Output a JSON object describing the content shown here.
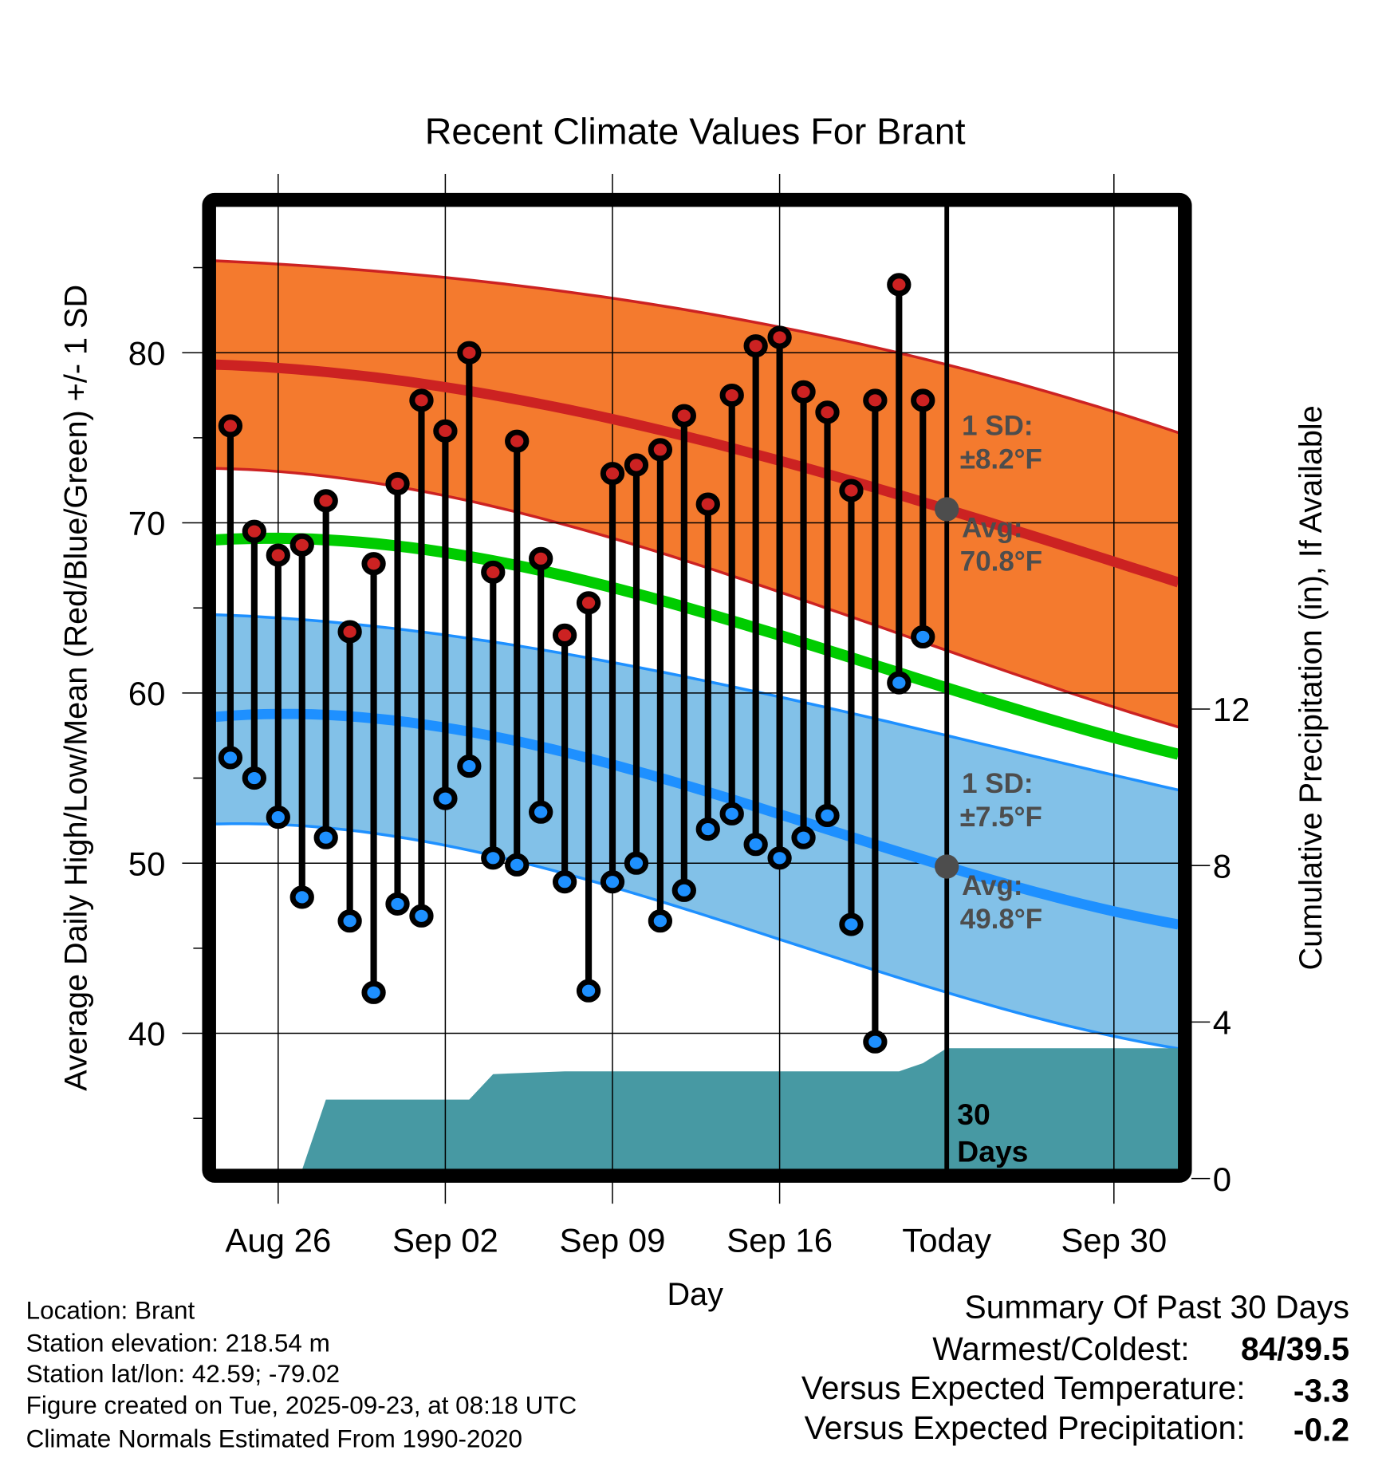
{
  "chart_data": {
    "type": "line",
    "title": "Recent Climate Values For Brant",
    "xlabel": "Day",
    "ylabel": "Average Daily High/Low/Mean (Red/Blue/Green) +/- 1 SD",
    "y2label": "Cumulative Precipitation (in), If Available",
    "ylim": [
      31.9,
      88.6
    ],
    "y2lim": [
      0,
      20
    ],
    "y_ticks": [
      "40",
      "50",
      "60",
      "70",
      "80"
    ],
    "y2_ticks": [
      "0",
      "4",
      "8",
      "12"
    ],
    "x_ticks": [
      {
        "label": "Aug 26",
        "day": 2
      },
      {
        "label": "Sep 02",
        "day": 9
      },
      {
        "label": "Sep 09",
        "day": 16
      },
      {
        "label": "Sep 16",
        "day": 23
      },
      {
        "label": "Today",
        "day": 30
      },
      {
        "label": "Sep 30",
        "day": 37
      }
    ],
    "x_unit": "days since Aug 24",
    "xlim": [
      -0.62,
      39.7
    ],
    "days": [
      "Aug 24",
      "Aug 25",
      "Aug 26",
      "Aug 27",
      "Aug 28",
      "Aug 29",
      "Aug 30",
      "Aug 31",
      "Sep 01",
      "Sep 02",
      "Sep 03",
      "Sep 04",
      "Sep 05",
      "Sep 06",
      "Sep 07",
      "Sep 08",
      "Sep 09",
      "Sep 10",
      "Sep 11",
      "Sep 12",
      "Sep 13",
      "Sep 14",
      "Sep 15",
      "Sep 16",
      "Sep 17",
      "Sep 18",
      "Sep 19",
      "Sep 20",
      "Sep 21",
      "Sep 22"
    ],
    "series": [
      {
        "name": "Daily High",
        "color": "#cc2222",
        "values": [
          75.7,
          69.5,
          68.1,
          68.7,
          71.3,
          63.6,
          67.6,
          72.3,
          77.2,
          75.4,
          80.0,
          67.1,
          74.8,
          67.9,
          63.4,
          65.3,
          72.9,
          73.4,
          74.3,
          76.3,
          71.1,
          77.5,
          80.4,
          80.9,
          77.7,
          76.5,
          71.9,
          77.2,
          84.0,
          77.2
        ]
      },
      {
        "name": "Daily Low",
        "color": "#1e90ff",
        "values": [
          56.2,
          55.0,
          52.7,
          48.0,
          51.5,
          46.6,
          42.4,
          47.6,
          46.9,
          53.8,
          55.7,
          50.3,
          49.9,
          53.0,
          48.9,
          42.5,
          48.9,
          50.0,
          46.6,
          48.4,
          52.0,
          52.9,
          51.1,
          50.3,
          51.5,
          52.8,
          46.4,
          39.5,
          60.6,
          63.3
        ]
      }
    ],
    "normals": {
      "days": [
        -0.62,
        16,
        30,
        39.7
      ],
      "high_upper": [
        85.4,
        83.2,
        79.3,
        75.3
      ],
      "high_avg": [
        79.3,
        76.1,
        70.8,
        66.5
      ],
      "high_lower": [
        73.2,
        69.1,
        62.5,
        58.0
      ],
      "mean": [
        69.0,
        66.2,
        60.3,
        56.4
      ],
      "low_upper": [
        64.6,
        61.8,
        57.5,
        54.3
      ],
      "low_avg": [
        58.6,
        55.8,
        49.8,
        46.4
      ],
      "low_lower": [
        52.3,
        48.6,
        42.4,
        39.1
      ]
    },
    "precipitation": {
      "days": [
        -0.62,
        3,
        4,
        10,
        11,
        14,
        28,
        29,
        30,
        39.7
      ],
      "values": [
        0.2,
        0.22,
        2.02,
        2.02,
        2.67,
        2.74,
        2.74,
        2.95,
        3.33,
        3.33
      ]
    },
    "annotations": {
      "high_sd_label": "1 SD:",
      "high_sd_value": "±8.2°F",
      "high_avg_label": "Avg:",
      "high_avg_value": "70.8°F",
      "low_sd_label": "1 SD:",
      "low_sd_value": "±7.5°F",
      "low_avg_label": "Avg:",
      "low_avg_value": "49.8°F",
      "window_num": "30",
      "window_unit": "Days"
    },
    "colors": {
      "high_band": "#f47a2e",
      "high_line": "#cc2222",
      "mean_line": "#00cc00",
      "low_band": "#82c1e8",
      "low_line": "#1e90ff",
      "precip": "#4799a3",
      "today_marker": "#4d4d4d"
    }
  },
  "info": {
    "location": "Location: Brant",
    "elevation": "Station elevation: 218.54 m",
    "latlon": "Station lat/lon: 42.59; -79.02",
    "created": "Figure created on Tue, 2025-09-23, at 08:18 UTC",
    "normals": "Climate Normals Estimated From 1990-2020"
  },
  "summary": {
    "title": "Summary Of Past 30 Days",
    "warm_cold_label": "Warmest/Coldest:",
    "warm_cold_value": "84/39.5",
    "temp_label": "Versus Expected Temperature:",
    "temp_value": "-3.3",
    "temp_color": "#1e90ff",
    "precip_label": "Versus Expected Precipitation:",
    "precip_value": "-0.2",
    "precip_color": "#a0522d"
  }
}
